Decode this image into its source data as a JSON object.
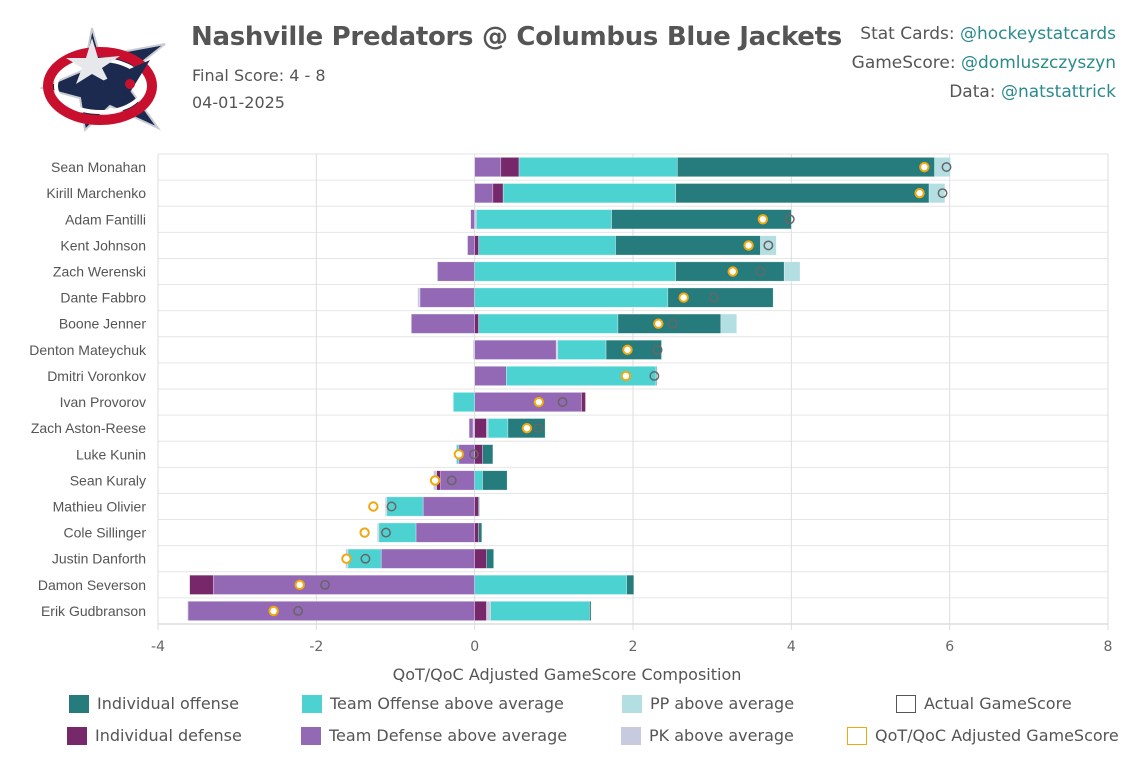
{
  "header": {
    "title": "Nashville Predators @ Columbus Blue Jackets",
    "final_score": "Final Score: 4 - 8",
    "date": "04-01-2025",
    "credits": [
      {
        "label": "Stat Cards: ",
        "handle": "@hockeystatcards"
      },
      {
        "label": "GameScore: ",
        "handle": "@domluszczyszyn"
      },
      {
        "label": "Data: ",
        "handle": "@natstattrick"
      }
    ],
    "logo": "columbus-blue-jackets-logo"
  },
  "colors": {
    "individual_offense": "#267b7c",
    "team_offense": "#4dd2d2",
    "pp": "#b3dee2",
    "individual_defense": "#76286a",
    "team_defense": "#9368b5",
    "pk": "#c8cae0",
    "actual_marker": "#666666",
    "adjusted_marker": "#f0a810",
    "handle": "#2a8a8c"
  },
  "chart_data": {
    "type": "bar",
    "orientation": "horizontal-stacked",
    "title": "",
    "xlabel": "QoT/QoC Adjusted GameScore Composition",
    "ylabel": "",
    "xlim": [
      -4,
      8
    ],
    "xticks": [
      -4,
      -2,
      0,
      2,
      4,
      6,
      8
    ],
    "grid": true,
    "legend_position": "bottom",
    "legend": [
      {
        "key": "individual_offense",
        "label": "Individual offense",
        "kind": "bar"
      },
      {
        "key": "team_offense",
        "label": "Team Offense above average",
        "kind": "bar"
      },
      {
        "key": "pp",
        "label": "PP above average",
        "kind": "bar"
      },
      {
        "key": "actual",
        "label": "Actual GameScore",
        "kind": "marker"
      },
      {
        "key": "individual_defense",
        "label": "Individual defense",
        "kind": "bar"
      },
      {
        "key": "team_defense",
        "label": "Team Defense above average",
        "kind": "bar"
      },
      {
        "key": "pk",
        "label": "PK above average",
        "kind": "bar"
      },
      {
        "key": "adjusted",
        "label": "QoT/QoC Adjusted GameScore",
        "kind": "marker"
      }
    ],
    "players": [
      {
        "name": "Sean Monahan",
        "segments": [
          [
            "team_defense",
            0.33
          ],
          [
            "individual_defense",
            0.23
          ],
          [
            "team_offense",
            2.0
          ],
          [
            "individual_offense",
            3.25
          ],
          [
            "pp",
            0.2
          ]
        ],
        "adjusted": 5.68,
        "actual": 5.96
      },
      {
        "name": "Kirill Marchenko",
        "segments": [
          [
            "team_defense",
            0.23
          ],
          [
            "individual_defense",
            0.13
          ],
          [
            "team_offense",
            2.18
          ],
          [
            "individual_offense",
            3.2
          ],
          [
            "pp",
            0.2
          ]
        ],
        "adjusted": 5.62,
        "actual": 5.91
      },
      {
        "name": "Adam Fantilli",
        "segments": [
          [
            "team_defense",
            -0.05
          ],
          [
            "pk",
            0.02
          ],
          [
            "team_offense",
            1.71
          ],
          [
            "individual_offense",
            2.27
          ]
        ],
        "adjusted": 3.64,
        "actual": 3.98
      },
      {
        "name": "Kent Johnson",
        "segments": [
          [
            "team_defense",
            -0.09
          ],
          [
            "individual_defense",
            0.05
          ],
          [
            "team_offense",
            1.73
          ],
          [
            "individual_offense",
            1.83
          ],
          [
            "pp",
            0.2
          ]
        ],
        "adjusted": 3.46,
        "actual": 3.71
      },
      {
        "name": "Zach Werenski",
        "segments": [
          [
            "team_defense",
            -0.47
          ],
          [
            "team_offense",
            2.54
          ],
          [
            "individual_offense",
            1.37
          ],
          [
            "pp",
            0.2
          ]
        ],
        "adjusted": 3.26,
        "actual": 3.61
      },
      {
        "name": "Dante Fabbro",
        "segments": [
          [
            "pk",
            -0.03
          ],
          [
            "team_defense",
            -0.69
          ],
          [
            "team_offense",
            2.44
          ],
          [
            "individual_offense",
            1.33
          ]
        ],
        "adjusted": 2.64,
        "actual": 3.02
      },
      {
        "name": "Boone Jenner",
        "segments": [
          [
            "team_defense",
            -0.8
          ],
          [
            "individual_defense",
            0.05
          ],
          [
            "team_offense",
            1.76
          ],
          [
            "individual_offense",
            1.3
          ],
          [
            "pp",
            0.2
          ]
        ],
        "adjusted": 2.32,
        "actual": 2.5
      },
      {
        "name": "Denton Mateychuk",
        "segments": [
          [
            "pk",
            -0.02
          ],
          [
            "team_defense",
            1.03
          ],
          [
            "pk",
            0.02
          ],
          [
            "team_offense",
            0.61
          ],
          [
            "individual_offense",
            0.7
          ]
        ],
        "adjusted": 1.93,
        "actual": 2.31
      },
      {
        "name": "Dmitri Voronkov",
        "segments": [
          [
            "team_defense",
            0.4
          ],
          [
            "team_offense",
            1.89
          ],
          [
            "individual_offense",
            0.01
          ]
        ],
        "adjusted": 1.91,
        "actual": 2.27
      },
      {
        "name": "Ivan Provorov",
        "segments": [
          [
            "team_offense",
            -0.27
          ],
          [
            "team_defense",
            1.35
          ],
          [
            "individual_defense",
            0.05
          ]
        ],
        "adjusted": 0.81,
        "actual": 1.11
      },
      {
        "name": "Zach Aston-Reese",
        "segments": [
          [
            "team_defense",
            -0.05
          ],
          [
            "pk",
            -0.02
          ],
          [
            "individual_defense",
            0.15
          ],
          [
            "pk",
            0.02
          ],
          [
            "team_offense",
            0.25
          ],
          [
            "individual_offense",
            0.47
          ]
        ],
        "adjusted": 0.66,
        "actual": 0.8
      },
      {
        "name": "Luke Kunin",
        "segments": [
          [
            "team_offense",
            -0.03
          ],
          [
            "team_defense",
            -0.2
          ],
          [
            "individual_defense",
            0.1
          ],
          [
            "individual_offense",
            0.13
          ]
        ],
        "adjusted": -0.2,
        "actual": -0.01
      },
      {
        "name": "Sean Kuraly",
        "segments": [
          [
            "pk",
            -0.04
          ],
          [
            "individual_defense",
            -0.05
          ],
          [
            "team_defense",
            -0.43
          ],
          [
            "team_offense",
            0.1
          ],
          [
            "individual_offense",
            0.31
          ]
        ],
        "adjusted": -0.5,
        "actual": -0.29
      },
      {
        "name": "Mathieu Olivier",
        "segments": [
          [
            "pk",
            -0.02
          ],
          [
            "team_offense",
            -0.46
          ],
          [
            "team_defense",
            -0.65
          ],
          [
            "individual_defense",
            0.05
          ],
          [
            "individual_offense",
            0.01
          ]
        ],
        "adjusted": -1.28,
        "actual": -1.05
      },
      {
        "name": "Cole Sillinger",
        "segments": [
          [
            "pk",
            -0.02
          ],
          [
            "team_offense",
            -0.47
          ],
          [
            "team_defense",
            -0.74
          ],
          [
            "individual_defense",
            0.05
          ],
          [
            "individual_offense",
            0.04
          ]
        ],
        "adjusted": -1.39,
        "actual": -1.12
      },
      {
        "name": "Justin Danforth",
        "segments": [
          [
            "pk",
            -0.03
          ],
          [
            "team_offense",
            -0.42
          ],
          [
            "team_defense",
            -1.18
          ],
          [
            "individual_defense",
            0.15
          ],
          [
            "individual_offense",
            0.09
          ]
        ],
        "adjusted": -1.62,
        "actual": -1.38
      },
      {
        "name": "Damon Severson",
        "segments": [
          [
            "individual_defense",
            -0.3
          ],
          [
            "team_defense",
            -3.3
          ],
          [
            "team_offense",
            1.92
          ],
          [
            "individual_offense",
            0.09
          ]
        ],
        "adjusted": -2.21,
        "actual": -1.89
      },
      {
        "name": "Erik Gudbranson",
        "segments": [
          [
            "pk",
            -0.01
          ],
          [
            "team_defense",
            -3.62
          ],
          [
            "individual_defense",
            0.15
          ],
          [
            "pk",
            0.05
          ],
          [
            "team_offense",
            1.25
          ],
          [
            "individual_offense",
            0.02
          ]
        ],
        "adjusted": -2.54,
        "actual": -2.23
      }
    ]
  }
}
